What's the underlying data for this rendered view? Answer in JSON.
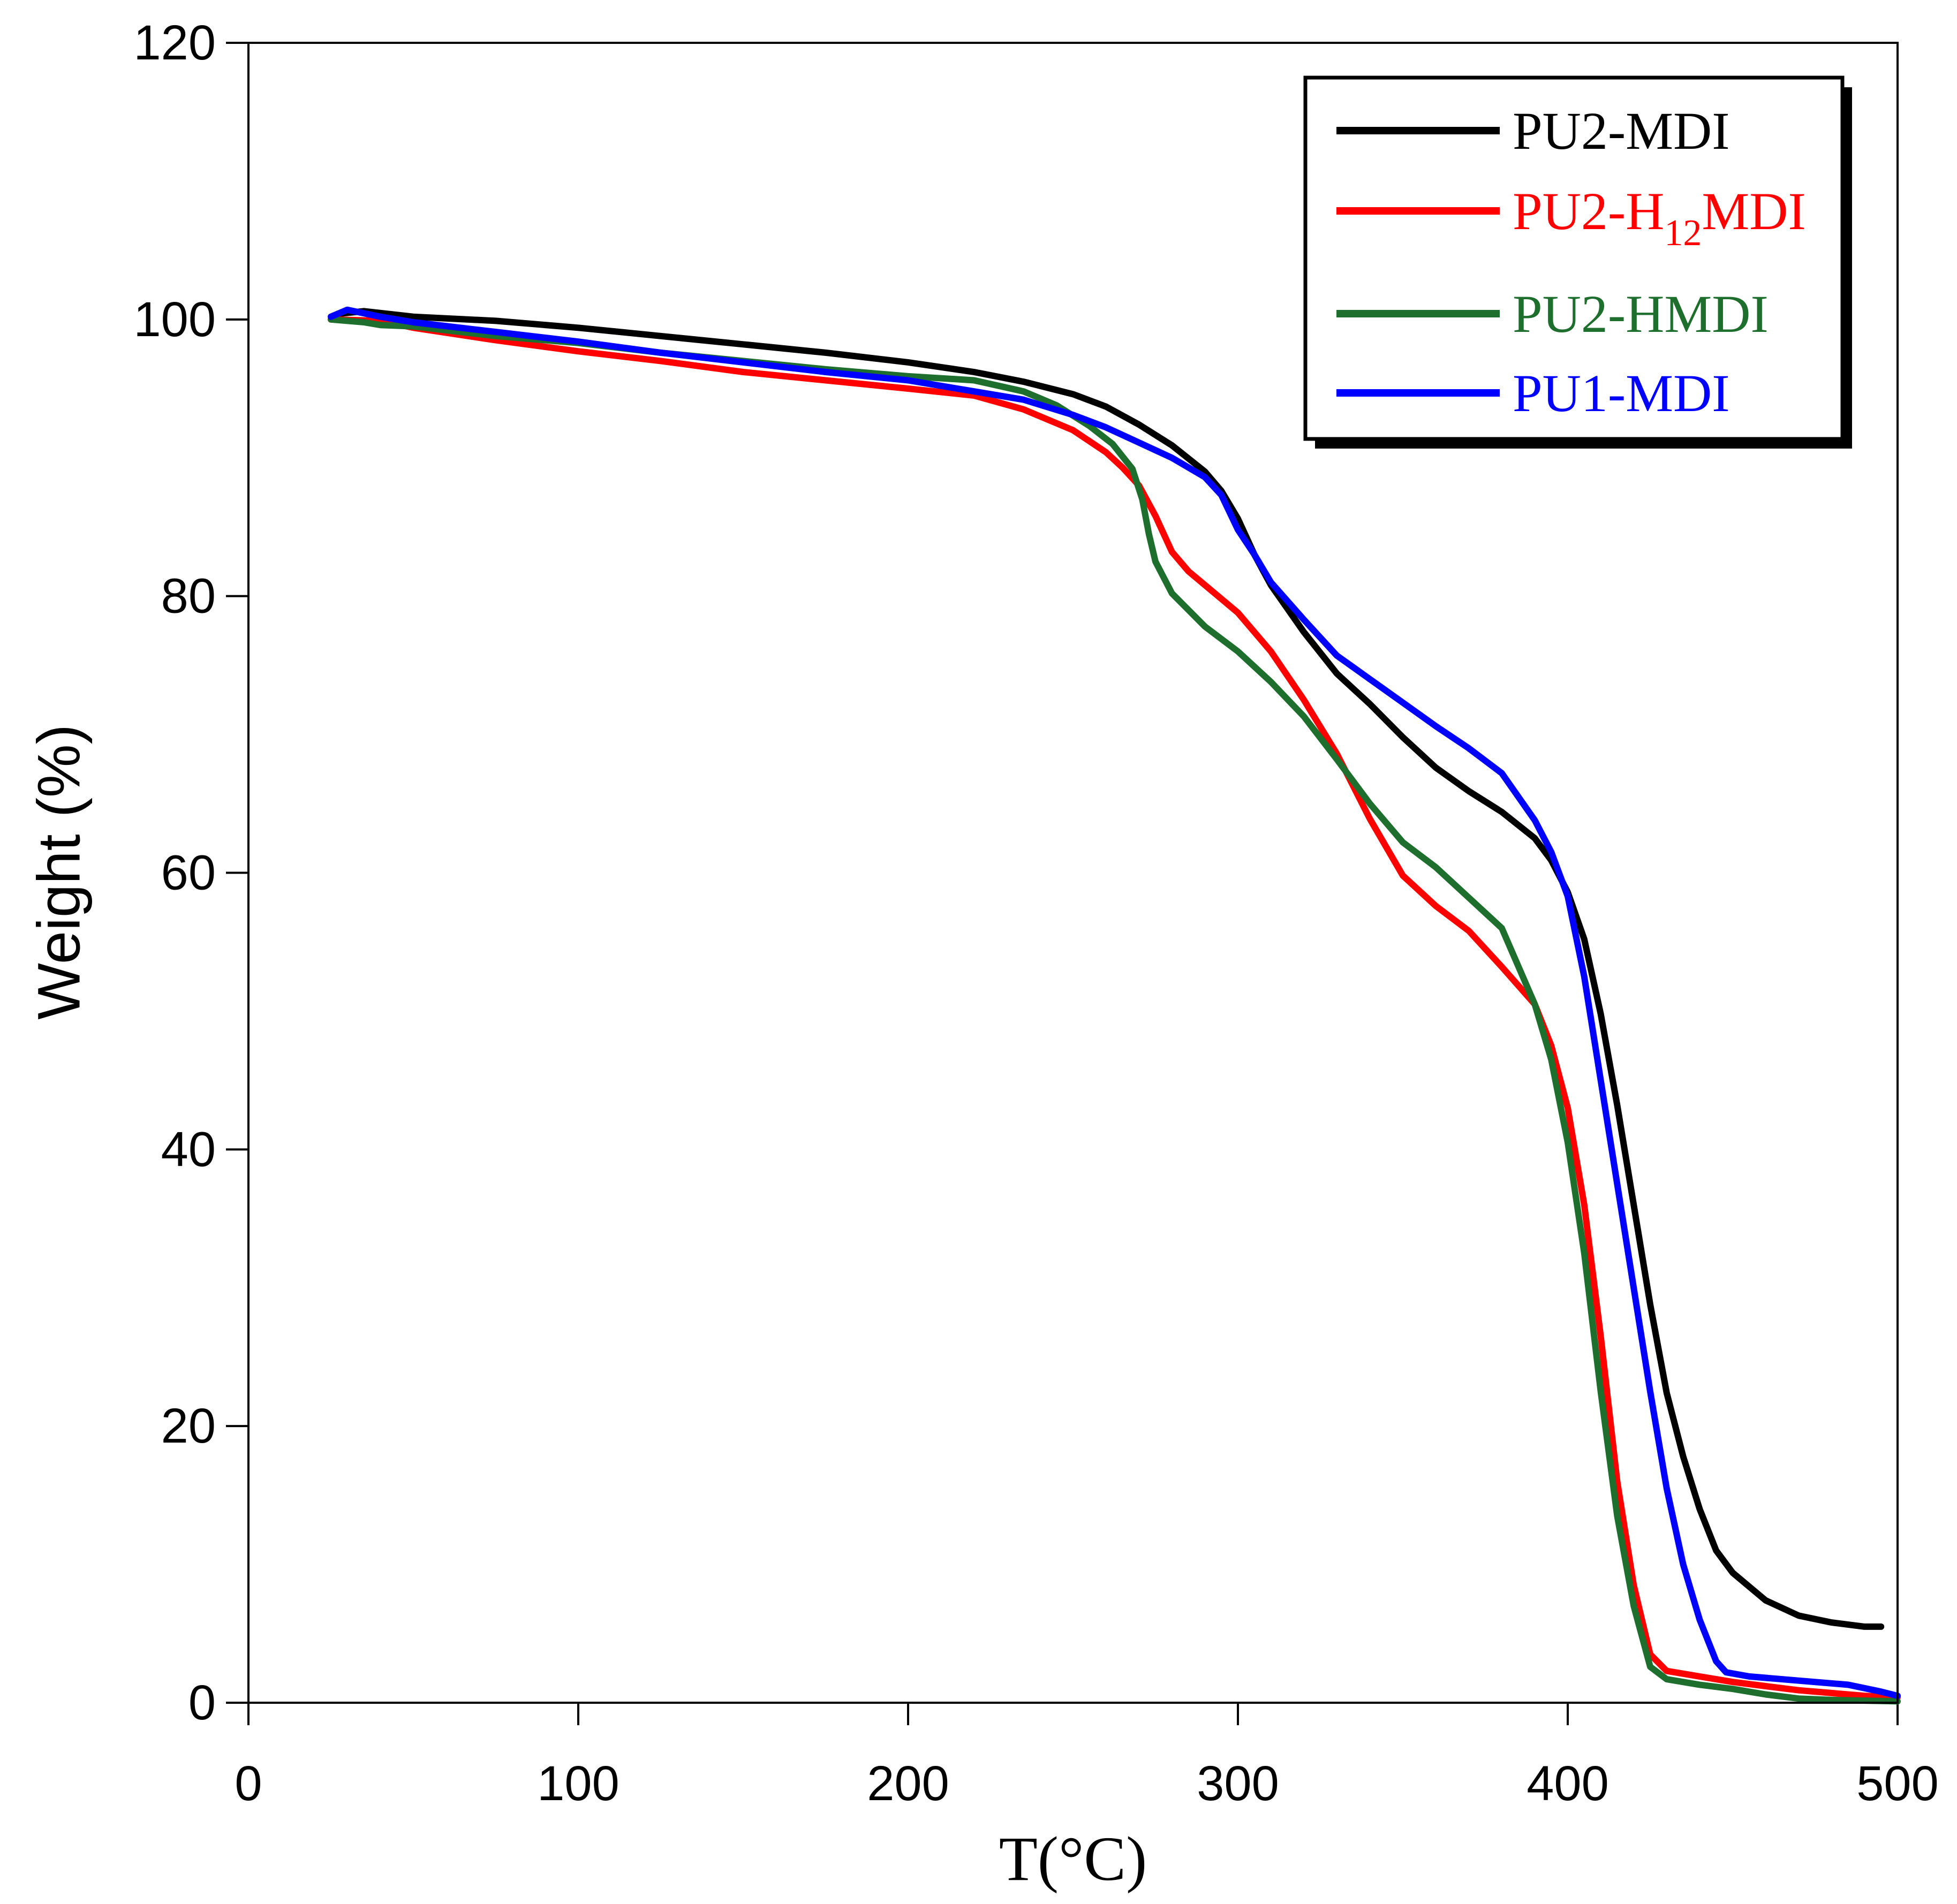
{
  "chart_data": {
    "type": "line",
    "title": "",
    "xlabel": "T(°C)",
    "ylabel": "Weight (%)",
    "xlim": [
      0,
      500
    ],
    "ylim": [
      0,
      120
    ],
    "xticks": [
      0,
      100,
      200,
      300,
      400,
      500
    ],
    "yticks": [
      0,
      20,
      40,
      60,
      80,
      100,
      120
    ],
    "grid": false,
    "legend": "top-right",
    "series": [
      {
        "name": "PU2-MDI",
        "color": "#000000",
        "x": [
          27,
          35,
          50,
          75,
          100,
          125,
          150,
          175,
          200,
          220,
          235,
          250,
          260,
          270,
          280,
          290,
          295,
          300,
          305,
          310,
          320,
          330,
          340,
          350,
          360,
          370,
          380,
          390,
          395,
          400,
          405,
          410,
          415,
          420,
          425,
          430,
          435,
          440,
          445,
          450,
          460,
          470,
          480,
          490,
          495
        ],
        "y": [
          100.4,
          100.6,
          100.2,
          99.9,
          99.4,
          98.8,
          98.2,
          97.6,
          96.9,
          96.2,
          95.5,
          94.6,
          93.7,
          92.4,
          90.9,
          89.0,
          87.6,
          85.6,
          83.0,
          80.8,
          77.4,
          74.4,
          72.2,
          69.8,
          67.6,
          65.9,
          64.4,
          62.5,
          60.9,
          58.6,
          55.2,
          49.8,
          43.2,
          36.0,
          28.8,
          22.4,
          17.8,
          14.0,
          11.0,
          9.4,
          7.4,
          6.3,
          5.8,
          5.5,
          5.5
        ]
      },
      {
        "name": "PU2-H12MDI",
        "subscript": "12",
        "color": "#ff0000",
        "x": [
          25,
          40,
          50,
          75,
          100,
          125,
          150,
          175,
          200,
          220,
          235,
          250,
          260,
          265,
          270,
          275,
          280,
          285,
          290,
          300,
          310,
          320,
          330,
          340,
          350,
          360,
          370,
          380,
          390,
          395,
          400,
          405,
          410,
          415,
          420,
          425,
          430,
          440,
          450,
          460,
          470,
          480,
          490,
          500
        ],
        "y": [
          100.0,
          99.9,
          99.4,
          98.5,
          97.7,
          97.0,
          96.2,
          95.6,
          95.0,
          94.5,
          93.5,
          92.0,
          90.4,
          89.3,
          88.0,
          85.8,
          83.2,
          81.8,
          80.8,
          78.8,
          76.0,
          72.5,
          68.6,
          63.9,
          59.8,
          57.6,
          55.8,
          53.2,
          50.5,
          47.5,
          43.0,
          36.0,
          26.5,
          16.0,
          8.5,
          3.5,
          2.3,
          1.9,
          1.5,
          1.2,
          0.9,
          0.7,
          0.5,
          0.4
        ]
      },
      {
        "name": "PU2-HMDI",
        "color": "#1e6e2e",
        "x": [
          25,
          35,
          40,
          50,
          75,
          100,
          125,
          150,
          175,
          200,
          220,
          235,
          245,
          255,
          262,
          268,
          271,
          273,
          275,
          280,
          290,
          300,
          310,
          320,
          330,
          340,
          350,
          360,
          370,
          380,
          390,
          395,
          400,
          405,
          410,
          415,
          420,
          425,
          430,
          440,
          450,
          460,
          470,
          480,
          500
        ],
        "y": [
          100.0,
          99.8,
          99.6,
          99.5,
          98.8,
          98.3,
          97.6,
          97.0,
          96.4,
          95.9,
          95.6,
          94.8,
          93.8,
          92.3,
          91.0,
          89.2,
          87.0,
          84.5,
          82.5,
          80.2,
          77.8,
          76.0,
          73.8,
          71.3,
          68.2,
          65.0,
          62.2,
          60.4,
          58.2,
          56.0,
          50.5,
          46.5,
          40.5,
          32.5,
          22.5,
          13.5,
          7.0,
          2.6,
          1.7,
          1.3,
          1.0,
          0.6,
          0.3,
          0.2,
          0.1
        ]
      },
      {
        "name": "PU1-MDI",
        "color": "#0000ff",
        "x": [
          25,
          30,
          40,
          50,
          75,
          100,
          125,
          150,
          175,
          200,
          220,
          235,
          250,
          260,
          270,
          280,
          290,
          295,
          300,
          305,
          310,
          320,
          330,
          340,
          350,
          360,
          370,
          380,
          390,
          395,
          400,
          405,
          410,
          415,
          420,
          425,
          430,
          435,
          440,
          445,
          448,
          455,
          470,
          485,
          495,
          500
        ],
        "y": [
          100.2,
          100.7,
          100.2,
          99.8,
          99.1,
          98.4,
          97.6,
          96.9,
          96.2,
          95.6,
          94.8,
          94.2,
          93.1,
          92.2,
          91.1,
          90.0,
          88.6,
          87.3,
          84.8,
          83.0,
          81.0,
          78.3,
          75.7,
          74.0,
          72.3,
          70.6,
          69.0,
          67.2,
          63.8,
          61.5,
          58.3,
          52.5,
          45.0,
          37.5,
          30.0,
          22.5,
          15.5,
          10.0,
          6.0,
          3.0,
          2.2,
          1.9,
          1.6,
          1.3,
          0.8,
          0.5
        ]
      }
    ]
  }
}
